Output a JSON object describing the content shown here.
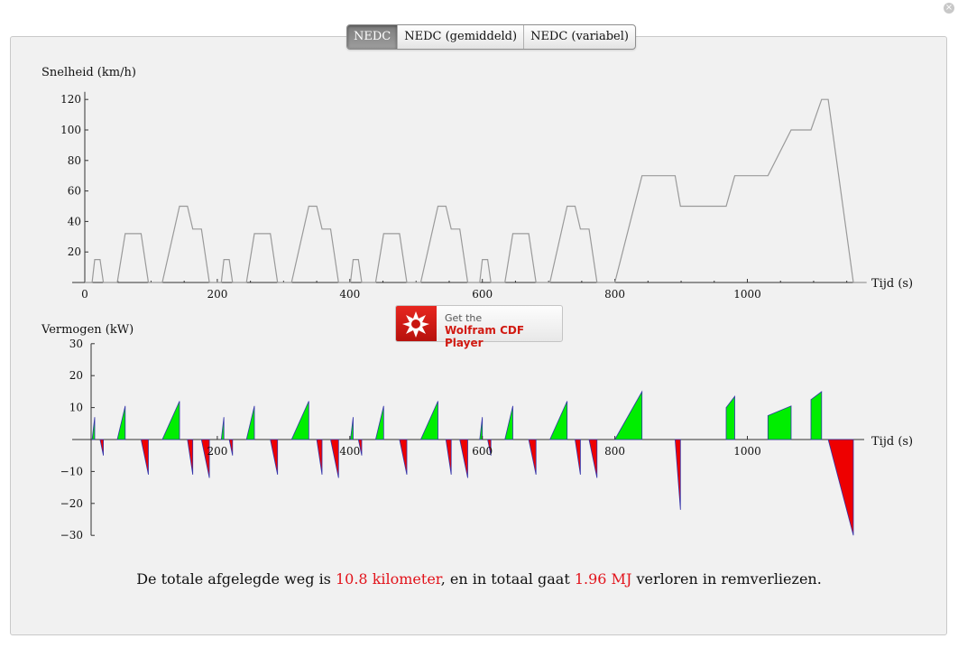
{
  "window": {
    "close_icon": "close-icon"
  },
  "tabs": [
    {
      "label": "NEDC",
      "active": true
    },
    {
      "label": "NEDC (gemiddeld)",
      "active": false
    },
    {
      "label": "NEDC (variabel)",
      "active": false
    }
  ],
  "cdf_button": {
    "icon": "wolfram-spikey-icon",
    "line1": "Get the",
    "line2": "Wolfram CDF Player"
  },
  "summary": {
    "prefix": "De totale afgelegde weg is ",
    "distance": "10.8 kilometer",
    "middle": ", en in totaal gaat ",
    "energy": "1.96 MJ",
    "suffix": " verloren in remverliezen."
  },
  "colors": {
    "speed_line": "#9a9a9a",
    "positive_power": "#00ee00",
    "negative_power": "#ee0000",
    "power_edge": "#3333aa",
    "highlight_text": "#e2131b"
  },
  "chart_data": [
    {
      "type": "line",
      "ylabel": "Snelheid (km/h)",
      "xlabel": "Tijd (s)",
      "xlim": [
        0,
        1180
      ],
      "ylim": [
        0,
        125
      ],
      "x_ticks": [
        0,
        200,
        400,
        600,
        800,
        1000
      ],
      "y_ticks": [
        20,
        40,
        60,
        80,
        100,
        120
      ],
      "series": [
        {
          "points": [
            [
              0,
              0
            ],
            [
              11,
              0
            ],
            [
              15,
              15
            ],
            [
              23,
              15
            ],
            [
              28,
              0
            ],
            [
              49,
              0
            ],
            [
              61,
              32
            ],
            [
              85,
              32
            ],
            [
              96,
              0
            ],
            [
              117,
              0
            ],
            [
              143,
              50
            ],
            [
              155,
              50
            ],
            [
              163,
              35
            ],
            [
              176,
              35
            ],
            [
              188,
              0
            ],
            [
              206,
              0
            ],
            [
              210,
              15
            ],
            [
              218,
              15
            ],
            [
              223,
              0
            ],
            [
              244,
              0
            ],
            [
              256,
              32
            ],
            [
              280,
              32
            ],
            [
              291,
              0
            ],
            [
              312,
              0
            ],
            [
              338,
              50
            ],
            [
              350,
              50
            ],
            [
              358,
              35
            ],
            [
              371,
              35
            ],
            [
              383,
              0
            ],
            [
              401,
              0
            ],
            [
              405,
              15
            ],
            [
              413,
              15
            ],
            [
              418,
              0
            ],
            [
              439,
              0
            ],
            [
              451,
              32
            ],
            [
              475,
              32
            ],
            [
              486,
              0
            ],
            [
              507,
              0
            ],
            [
              533,
              50
            ],
            [
              545,
              50
            ],
            [
              553,
              35
            ],
            [
              566,
              35
            ],
            [
              578,
              0
            ],
            [
              596,
              0
            ],
            [
              600,
              15
            ],
            [
              608,
              15
            ],
            [
              613,
              0
            ],
            [
              634,
              0
            ],
            [
              646,
              32
            ],
            [
              670,
              32
            ],
            [
              681,
              0
            ],
            [
              702,
              0
            ],
            [
              728,
              50
            ],
            [
              740,
              50
            ],
            [
              748,
              35
            ],
            [
              761,
              35
            ],
            [
              773,
              0
            ],
            [
              800,
              0
            ],
            [
              841,
              70
            ],
            [
              891,
              70
            ],
            [
              899,
              50
            ],
            [
              968,
              50
            ],
            [
              981,
              70
            ],
            [
              1031,
              70
            ],
            [
              1066,
              100
            ],
            [
              1096,
              100
            ],
            [
              1112,
              120
            ],
            [
              1122,
              120
            ],
            [
              1160,
              0
            ],
            [
              1180,
              0
            ]
          ]
        }
      ]
    },
    {
      "type": "area",
      "ylabel": "Vermogen (kW)",
      "xlabel": "Tijd (s)",
      "xlim": [
        0,
        1180
      ],
      "ylim": [
        -30,
        30
      ],
      "x_ticks": [
        200,
        400,
        600,
        800,
        1000
      ],
      "y_ticks": [
        -30,
        -20,
        -10,
        10,
        20,
        30
      ],
      "series": [
        {
          "name": "acceleration",
          "segments": [
            [
              [
                11,
                0
              ],
              [
                15,
                7
              ]
            ],
            [
              [
                49,
                0
              ],
              [
                61,
                10.5
              ]
            ],
            [
              [
                117,
                0
              ],
              [
                143,
                12
              ]
            ],
            [
              [
                206,
                0
              ],
              [
                210,
                7
              ]
            ],
            [
              [
                244,
                0
              ],
              [
                256,
                10.5
              ]
            ],
            [
              [
                312,
                0
              ],
              [
                338,
                12
              ]
            ],
            [
              [
                401,
                0
              ],
              [
                405,
                7
              ]
            ],
            [
              [
                439,
                0
              ],
              [
                451,
                10.5
              ]
            ],
            [
              [
                507,
                0
              ],
              [
                533,
                12
              ]
            ],
            [
              [
                596,
                0
              ],
              [
                600,
                7
              ]
            ],
            [
              [
                634,
                0
              ],
              [
                646,
                10.5
              ]
            ],
            [
              [
                702,
                0
              ],
              [
                728,
                12
              ]
            ],
            [
              [
                800,
                0
              ],
              [
                841,
                15
              ]
            ],
            [
              [
                968,
                10
              ],
              [
                981,
                13.5
              ]
            ],
            [
              [
                1031,
                7.5
              ],
              [
                1066,
                10.5
              ]
            ],
            [
              [
                1096,
                12.5
              ],
              [
                1112,
                15
              ]
            ]
          ]
        },
        {
          "name": "braking",
          "segments": [
            [
              [
                23,
                0
              ],
              [
                28,
                -5
              ]
            ],
            [
              [
                85,
                0
              ],
              [
                96,
                -11
              ]
            ],
            [
              [
                155,
                0
              ],
              [
                163,
                -11
              ]
            ],
            [
              [
                176,
                0
              ],
              [
                188,
                -12
              ]
            ],
            [
              [
                218,
                0
              ],
              [
                223,
                -5
              ]
            ],
            [
              [
                280,
                0
              ],
              [
                291,
                -11
              ]
            ],
            [
              [
                350,
                0
              ],
              [
                358,
                -11
              ]
            ],
            [
              [
                371,
                0
              ],
              [
                383,
                -12
              ]
            ],
            [
              [
                413,
                0
              ],
              [
                418,
                -5
              ]
            ],
            [
              [
                475,
                0
              ],
              [
                486,
                -11
              ]
            ],
            [
              [
                545,
                0
              ],
              [
                553,
                -11
              ]
            ],
            [
              [
                566,
                0
              ],
              [
                578,
                -12
              ]
            ],
            [
              [
                608,
                0
              ],
              [
                613,
                -5
              ]
            ],
            [
              [
                670,
                0
              ],
              [
                681,
                -11
              ]
            ],
            [
              [
                740,
                0
              ],
              [
                748,
                -11
              ]
            ],
            [
              [
                761,
                0
              ],
              [
                773,
                -12
              ]
            ],
            [
              [
                891,
                0
              ],
              [
                899,
                -22
              ]
            ],
            [
              [
                1122,
                0
              ],
              [
                1160,
                -30
              ]
            ]
          ]
        }
      ]
    }
  ]
}
